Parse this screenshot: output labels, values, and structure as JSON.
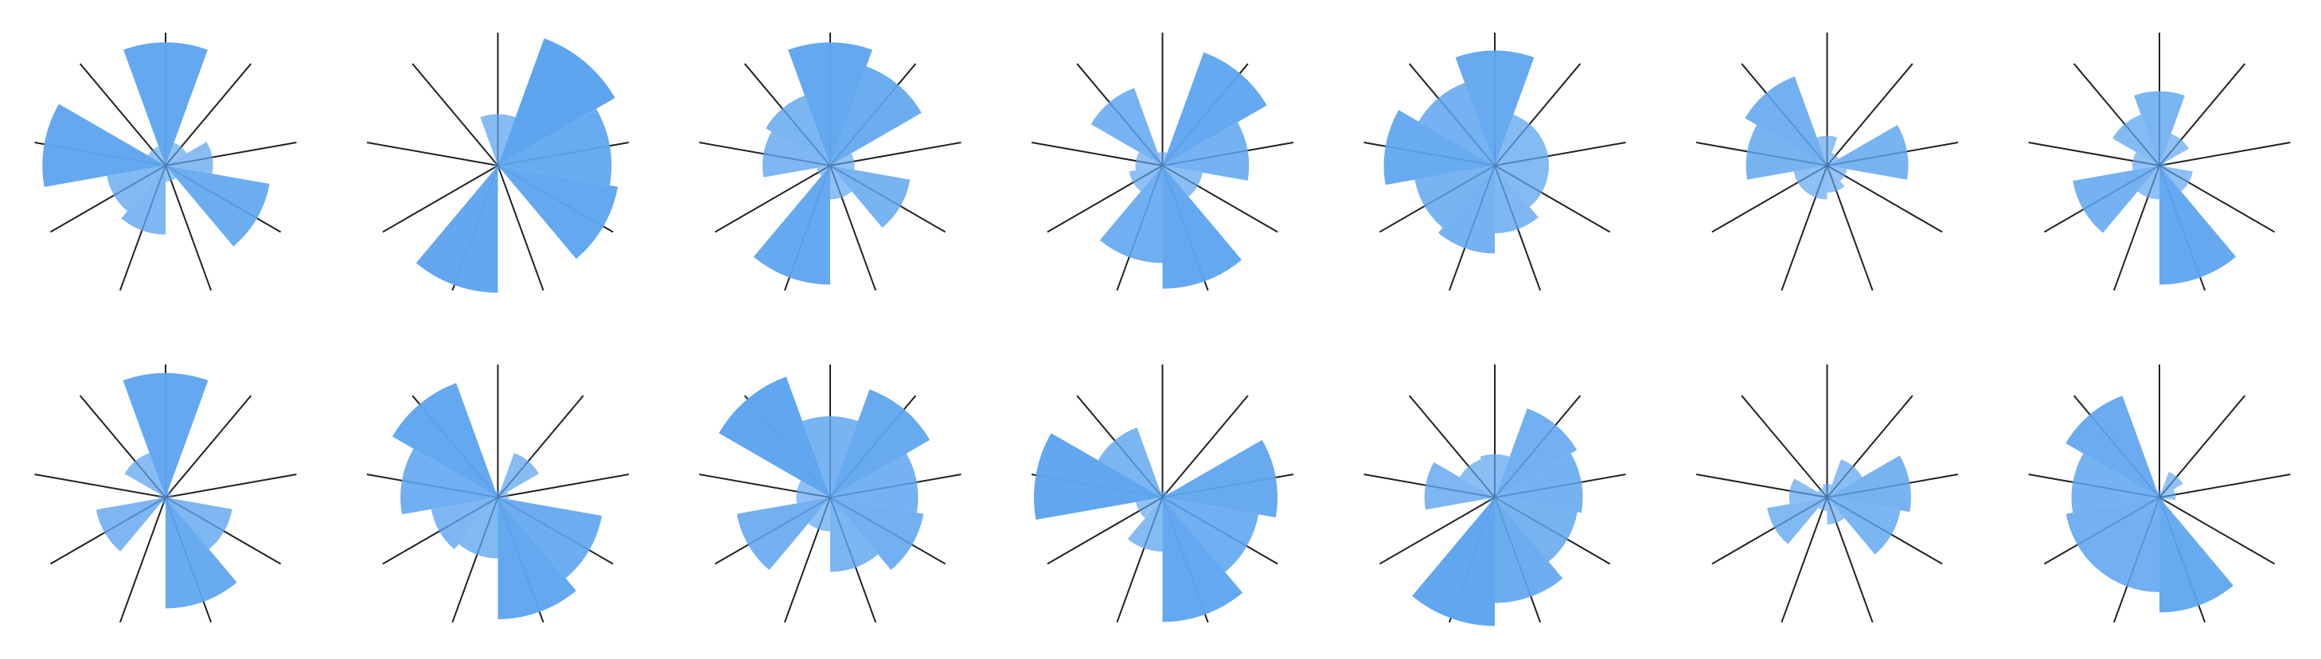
{
  "chart_data": [
    {
      "type": "polar_area",
      "color": "#5ea5ef",
      "rlim": [
        0,
        100
      ],
      "values": [
        91,
        18,
        35,
        78,
        12,
        51,
        44,
        91,
        15
      ]
    },
    {
      "type": "polar_area",
      "color": "#5ea5ef",
      "rlim": [
        0,
        100
      ],
      "values": [
        38,
        100,
        84,
        90,
        3,
        94,
        3,
        3,
        3
      ]
    },
    {
      "type": "polar_area",
      "color": "#5ea5ef",
      "rlim": [
        0,
        100
      ],
      "values": [
        91,
        78,
        18,
        60,
        25,
        88,
        10,
        50,
        55
      ]
    },
    {
      "type": "polar_area",
      "color": "#5ea5ef",
      "rlim": [
        0,
        100
      ],
      "values": [
        10,
        89,
        64,
        30,
        91,
        72,
        25,
        20,
        61
      ]
    },
    {
      "type": "polar_area",
      "color": "#5ea5ef",
      "rlim": [
        0,
        100
      ],
      "values": [
        85,
        40,
        40,
        40,
        50,
        65,
        60,
        82,
        65
      ]
    },
    {
      "type": "polar_area",
      "color": "#5ea5ef",
      "rlim": [
        0,
        100
      ],
      "values": [
        22,
        10,
        60,
        15,
        20,
        25,
        25,
        60,
        70
      ]
    },
    {
      "type": "polar_area",
      "color": "#5ea5ef",
      "rlim": [
        0,
        100
      ],
      "values": [
        55,
        25,
        5,
        25,
        88,
        25,
        65,
        20,
        40
      ]
    },
    {
      "type": "polar_area",
      "color": "#5ea5ef",
      "rlim": [
        0,
        100
      ],
      "values": [
        92,
        5,
        5,
        50,
        82,
        5,
        52,
        5,
        35
      ]
    },
    {
      "type": "polar_area",
      "color": "#5ea5ef",
      "rlim": [
        0,
        100
      ],
      "values": [
        5,
        35,
        8,
        78,
        90,
        45,
        50,
        72,
        90
      ]
    },
    {
      "type": "polar_area",
      "color": "#5ea5ef",
      "rlim": [
        0,
        100
      ],
      "values": [
        60,
        85,
        65,
        70,
        55,
        25,
        70,
        25,
        95
      ]
    },
    {
      "type": "polar_area",
      "color": "#5ea5ef",
      "rlim": [
        0,
        100
      ],
      "values": [
        5,
        5,
        85,
        72,
        92,
        40,
        20,
        95,
        55
      ]
    },
    {
      "type": "polar_area",
      "color": "#5ea5ef",
      "rlim": [
        0,
        100
      ],
      "values": [
        32,
        70,
        65,
        62,
        78,
        95,
        5,
        52,
        30
      ]
    },
    {
      "type": "polar_area",
      "color": "#5ea5ef",
      "rlim": [
        0,
        100
      ],
      "values": [
        10,
        30,
        62,
        55,
        20,
        10,
        45,
        28,
        8
      ]
    },
    {
      "type": "polar_area",
      "color": "#5ea5ef",
      "rlim": [
        0,
        100
      ],
      "values": [
        5,
        20,
        12,
        5,
        85,
        70,
        70,
        65,
        80
      ]
    }
  ]
}
